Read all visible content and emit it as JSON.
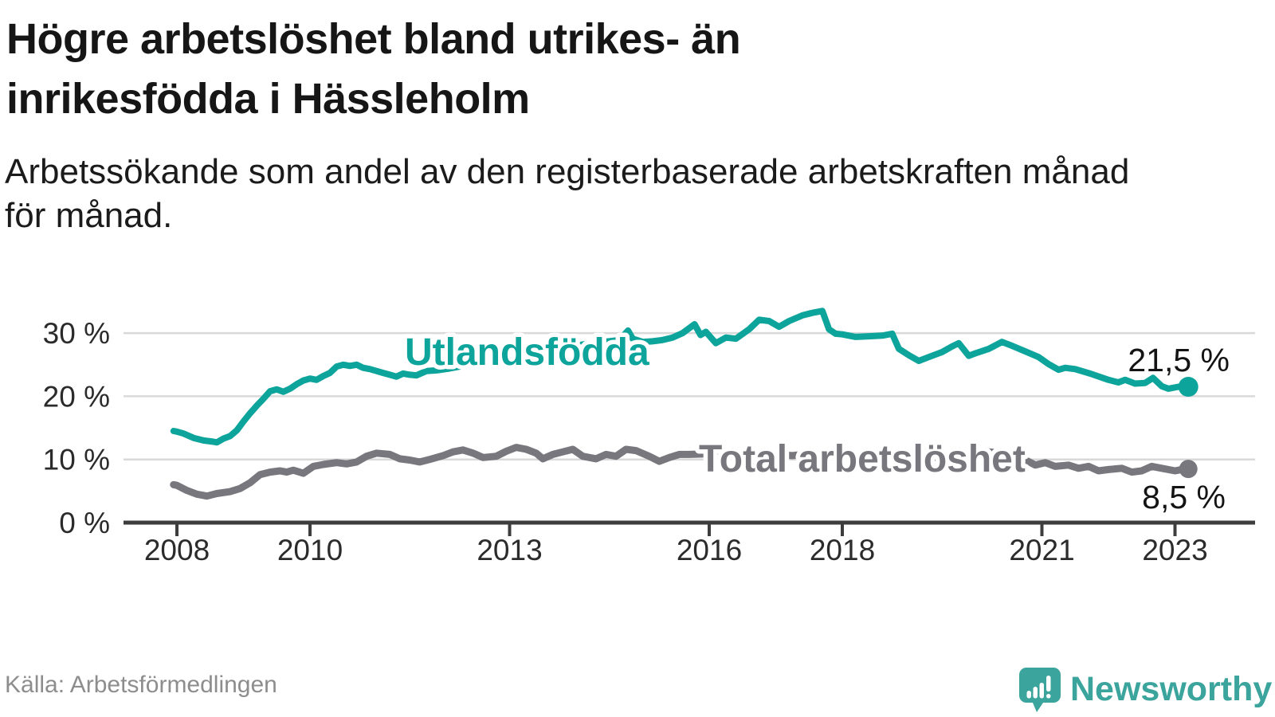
{
  "header": {
    "title_line1": "Högre arbetslöshet bland utrikes- än",
    "title_line2": "inrikesfödda i Hässleholm",
    "subtitle_line1": "Arbetssökande som andel av den registerbaserade arbetskraften månad",
    "subtitle_line2": "för månad."
  },
  "footer": {
    "source": "Källa: Arbetsförmedlingen",
    "brand": "Newsworthy"
  },
  "colors": {
    "teal_line": "#0ca49b",
    "gray_line": "#77777d",
    "grid": "#d9d9d9",
    "axis": "#3d3d3d",
    "tick_text": "#2b2b2b",
    "value_text": "#141414",
    "source_text": "#8d8d8d",
    "logo_teal": "#3ba49c"
  },
  "chart_data": {
    "type": "line",
    "title": "Högre arbetslöshet bland utrikes- än inrikesfödda i Hässleholm",
    "subtitle": "Arbetssökande som andel av den registerbaserade arbetskraften månad för månad.",
    "unit": "%",
    "grid": true,
    "legend": "inline-labels",
    "xlim": [
      2007.2,
      2024.2
    ],
    "ylim": [
      0,
      35
    ],
    "x_ticks": [
      {
        "year": 2008,
        "label": "2008"
      },
      {
        "year": 2010,
        "label": "2010"
      },
      {
        "year": 2013,
        "label": "2013"
      },
      {
        "year": 2016,
        "label": "2016"
      },
      {
        "year": 2018,
        "label": "2018"
      },
      {
        "year": 2021,
        "label": "2021"
      },
      {
        "year": 2023,
        "label": "2023"
      }
    ],
    "y_ticks": [
      {
        "value": 0,
        "label": "0 %"
      },
      {
        "value": 10,
        "label": "10 %"
      },
      {
        "value": 20,
        "label": "20 %"
      },
      {
        "value": 30,
        "label": "30 %"
      }
    ],
    "series": [
      {
        "name": "Utlandsfödda",
        "color": "#0ca49b",
        "stroke_width": 8,
        "dot_radius": 12.5,
        "end_label": "21,5 %",
        "end_value": 21.5,
        "points": [
          [
            2007.95,
            14.5
          ],
          [
            2008.0,
            14.4
          ],
          [
            2008.1,
            14.1
          ],
          [
            2008.25,
            13.4
          ],
          [
            2008.4,
            13.0
          ],
          [
            2008.55,
            12.8
          ],
          [
            2008.6,
            12.7
          ],
          [
            2008.7,
            13.3
          ],
          [
            2008.8,
            13.7
          ],
          [
            2008.9,
            14.6
          ],
          [
            2009.0,
            16.0
          ],
          [
            2009.1,
            17.3
          ],
          [
            2009.2,
            18.5
          ],
          [
            2009.3,
            19.6
          ],
          [
            2009.4,
            20.8
          ],
          [
            2009.5,
            21.1
          ],
          [
            2009.6,
            20.7
          ],
          [
            2009.7,
            21.2
          ],
          [
            2009.8,
            21.9
          ],
          [
            2009.9,
            22.5
          ],
          [
            2010.0,
            22.8
          ],
          [
            2010.1,
            22.6
          ],
          [
            2010.2,
            23.2
          ],
          [
            2010.3,
            23.7
          ],
          [
            2010.4,
            24.7
          ],
          [
            2010.5,
            25.0
          ],
          [
            2010.6,
            24.8
          ],
          [
            2010.7,
            25.0
          ],
          [
            2010.8,
            24.5
          ],
          [
            2010.9,
            24.3
          ],
          [
            2011.0,
            24.0
          ],
          [
            2011.1,
            23.7
          ],
          [
            2011.2,
            23.4
          ],
          [
            2011.3,
            23.1
          ],
          [
            2011.4,
            23.6
          ],
          [
            2011.5,
            23.4
          ],
          [
            2011.6,
            23.3
          ],
          [
            2011.75,
            24.0
          ],
          [
            2011.9,
            24.1
          ],
          [
            2012.1,
            24.4
          ],
          [
            2012.3,
            24.8
          ],
          [
            2012.5,
            25.2
          ],
          [
            2012.7,
            25.6
          ],
          [
            2012.9,
            26.0
          ],
          [
            2013.1,
            26.4
          ],
          [
            2013.3,
            26.9
          ],
          [
            2013.5,
            27.2
          ],
          [
            2013.7,
            27.6
          ],
          [
            2013.9,
            27.9
          ],
          [
            2014.1,
            28.2
          ],
          [
            2014.3,
            28.5
          ],
          [
            2014.5,
            28.7
          ],
          [
            2014.65,
            28.9
          ],
          [
            2014.78,
            30.4
          ],
          [
            2014.85,
            29.1
          ],
          [
            2015.0,
            28.6
          ],
          [
            2015.15,
            28.7
          ],
          [
            2015.3,
            28.9
          ],
          [
            2015.45,
            29.3
          ],
          [
            2015.6,
            30.0
          ],
          [
            2015.78,
            31.4
          ],
          [
            2015.87,
            29.7
          ],
          [
            2015.95,
            30.2
          ],
          [
            2016.1,
            28.4
          ],
          [
            2016.25,
            29.3
          ],
          [
            2016.4,
            29.1
          ],
          [
            2016.6,
            30.6
          ],
          [
            2016.75,
            32.1
          ],
          [
            2016.9,
            31.9
          ],
          [
            2017.05,
            31.0
          ],
          [
            2017.2,
            31.9
          ],
          [
            2017.4,
            32.8
          ],
          [
            2017.55,
            33.2
          ],
          [
            2017.7,
            33.5
          ],
          [
            2017.8,
            30.6
          ],
          [
            2017.9,
            29.9
          ],
          [
            2018.0,
            29.8
          ],
          [
            2018.2,
            29.4
          ],
          [
            2018.4,
            29.5
          ],
          [
            2018.6,
            29.6
          ],
          [
            2018.75,
            29.9
          ],
          [
            2018.85,
            27.5
          ],
          [
            2019.0,
            26.5
          ],
          [
            2019.15,
            25.6
          ],
          [
            2019.3,
            26.2
          ],
          [
            2019.5,
            27.0
          ],
          [
            2019.65,
            27.9
          ],
          [
            2019.75,
            28.4
          ],
          [
            2019.9,
            26.4
          ],
          [
            2020.0,
            26.8
          ],
          [
            2020.2,
            27.5
          ],
          [
            2020.4,
            28.6
          ],
          [
            2020.55,
            28.0
          ],
          [
            2020.75,
            27.1
          ],
          [
            2020.95,
            26.2
          ],
          [
            2021.1,
            25.1
          ],
          [
            2021.25,
            24.2
          ],
          [
            2021.35,
            24.5
          ],
          [
            2021.5,
            24.3
          ],
          [
            2021.75,
            23.5
          ],
          [
            2022.0,
            22.6
          ],
          [
            2022.15,
            22.2
          ],
          [
            2022.25,
            22.6
          ],
          [
            2022.4,
            22.0
          ],
          [
            2022.55,
            22.1
          ],
          [
            2022.67,
            22.9
          ],
          [
            2022.8,
            21.6
          ],
          [
            2022.9,
            21.2
          ],
          [
            2023.05,
            21.5
          ],
          [
            2023.2,
            21.5
          ]
        ]
      },
      {
        "name": "Total arbetslöshet",
        "color": "#77777d",
        "stroke_width": 9,
        "dot_radius": 11.5,
        "end_label": "8,5 %",
        "end_value": 8.5,
        "points": [
          [
            2007.95,
            6.0
          ],
          [
            2008.0,
            5.9
          ],
          [
            2008.15,
            5.1
          ],
          [
            2008.3,
            4.5
          ],
          [
            2008.45,
            4.2
          ],
          [
            2008.6,
            4.6
          ],
          [
            2008.8,
            4.9
          ],
          [
            2008.95,
            5.4
          ],
          [
            2009.1,
            6.3
          ],
          [
            2009.25,
            7.6
          ],
          [
            2009.4,
            8.0
          ],
          [
            2009.55,
            8.2
          ],
          [
            2009.65,
            8.0
          ],
          [
            2009.75,
            8.3
          ],
          [
            2009.9,
            7.8
          ],
          [
            2010.05,
            8.9
          ],
          [
            2010.2,
            9.2
          ],
          [
            2010.4,
            9.5
          ],
          [
            2010.55,
            9.3
          ],
          [
            2010.7,
            9.6
          ],
          [
            2010.85,
            10.5
          ],
          [
            2011.0,
            11.0
          ],
          [
            2011.2,
            10.8
          ],
          [
            2011.35,
            10.1
          ],
          [
            2011.5,
            9.9
          ],
          [
            2011.65,
            9.6
          ],
          [
            2011.8,
            10.0
          ],
          [
            2012.0,
            10.6
          ],
          [
            2012.15,
            11.2
          ],
          [
            2012.3,
            11.5
          ],
          [
            2012.45,
            11.0
          ],
          [
            2012.6,
            10.3
          ],
          [
            2012.8,
            10.5
          ],
          [
            2012.95,
            11.3
          ],
          [
            2013.1,
            11.9
          ],
          [
            2013.25,
            11.6
          ],
          [
            2013.4,
            11.0
          ],
          [
            2013.5,
            10.1
          ],
          [
            2013.65,
            10.8
          ],
          [
            2013.8,
            11.2
          ],
          [
            2013.95,
            11.6
          ],
          [
            2014.1,
            10.5
          ],
          [
            2014.3,
            10.1
          ],
          [
            2014.45,
            10.8
          ],
          [
            2014.6,
            10.5
          ],
          [
            2014.75,
            11.6
          ],
          [
            2014.9,
            11.4
          ],
          [
            2015.1,
            10.5
          ],
          [
            2015.25,
            9.7
          ],
          [
            2015.4,
            10.3
          ],
          [
            2015.55,
            10.8
          ],
          [
            2015.7,
            10.8
          ],
          [
            2016.0,
            10.9
          ],
          [
            2016.25,
            10.6
          ],
          [
            2016.5,
            10.8
          ],
          [
            2016.75,
            11.0
          ],
          [
            2017.0,
            10.8
          ],
          [
            2017.25,
            10.6
          ],
          [
            2017.5,
            10.9
          ],
          [
            2017.75,
            11.0
          ],
          [
            2018.0,
            10.7
          ],
          [
            2018.25,
            10.5
          ],
          [
            2018.5,
            10.6
          ],
          [
            2018.75,
            10.8
          ],
          [
            2019.0,
            10.4
          ],
          [
            2019.25,
            10.2
          ],
          [
            2019.5,
            10.4
          ],
          [
            2019.75,
            10.6
          ],
          [
            2020.0,
            10.5
          ],
          [
            2020.2,
            11.2
          ],
          [
            2020.4,
            11.0
          ],
          [
            2020.55,
            10.4
          ],
          [
            2020.7,
            10.2
          ],
          [
            2020.9,
            9.1
          ],
          [
            2021.05,
            9.5
          ],
          [
            2021.2,
            8.9
          ],
          [
            2021.4,
            9.1
          ],
          [
            2021.55,
            8.6
          ],
          [
            2021.7,
            8.9
          ],
          [
            2021.85,
            8.2
          ],
          [
            2022.0,
            8.4
          ],
          [
            2022.2,
            8.6
          ],
          [
            2022.35,
            8.0
          ],
          [
            2022.5,
            8.2
          ],
          [
            2022.65,
            8.9
          ],
          [
            2022.8,
            8.6
          ],
          [
            2023.0,
            8.2
          ],
          [
            2023.1,
            8.4
          ],
          [
            2023.2,
            8.5
          ]
        ]
      }
    ]
  }
}
